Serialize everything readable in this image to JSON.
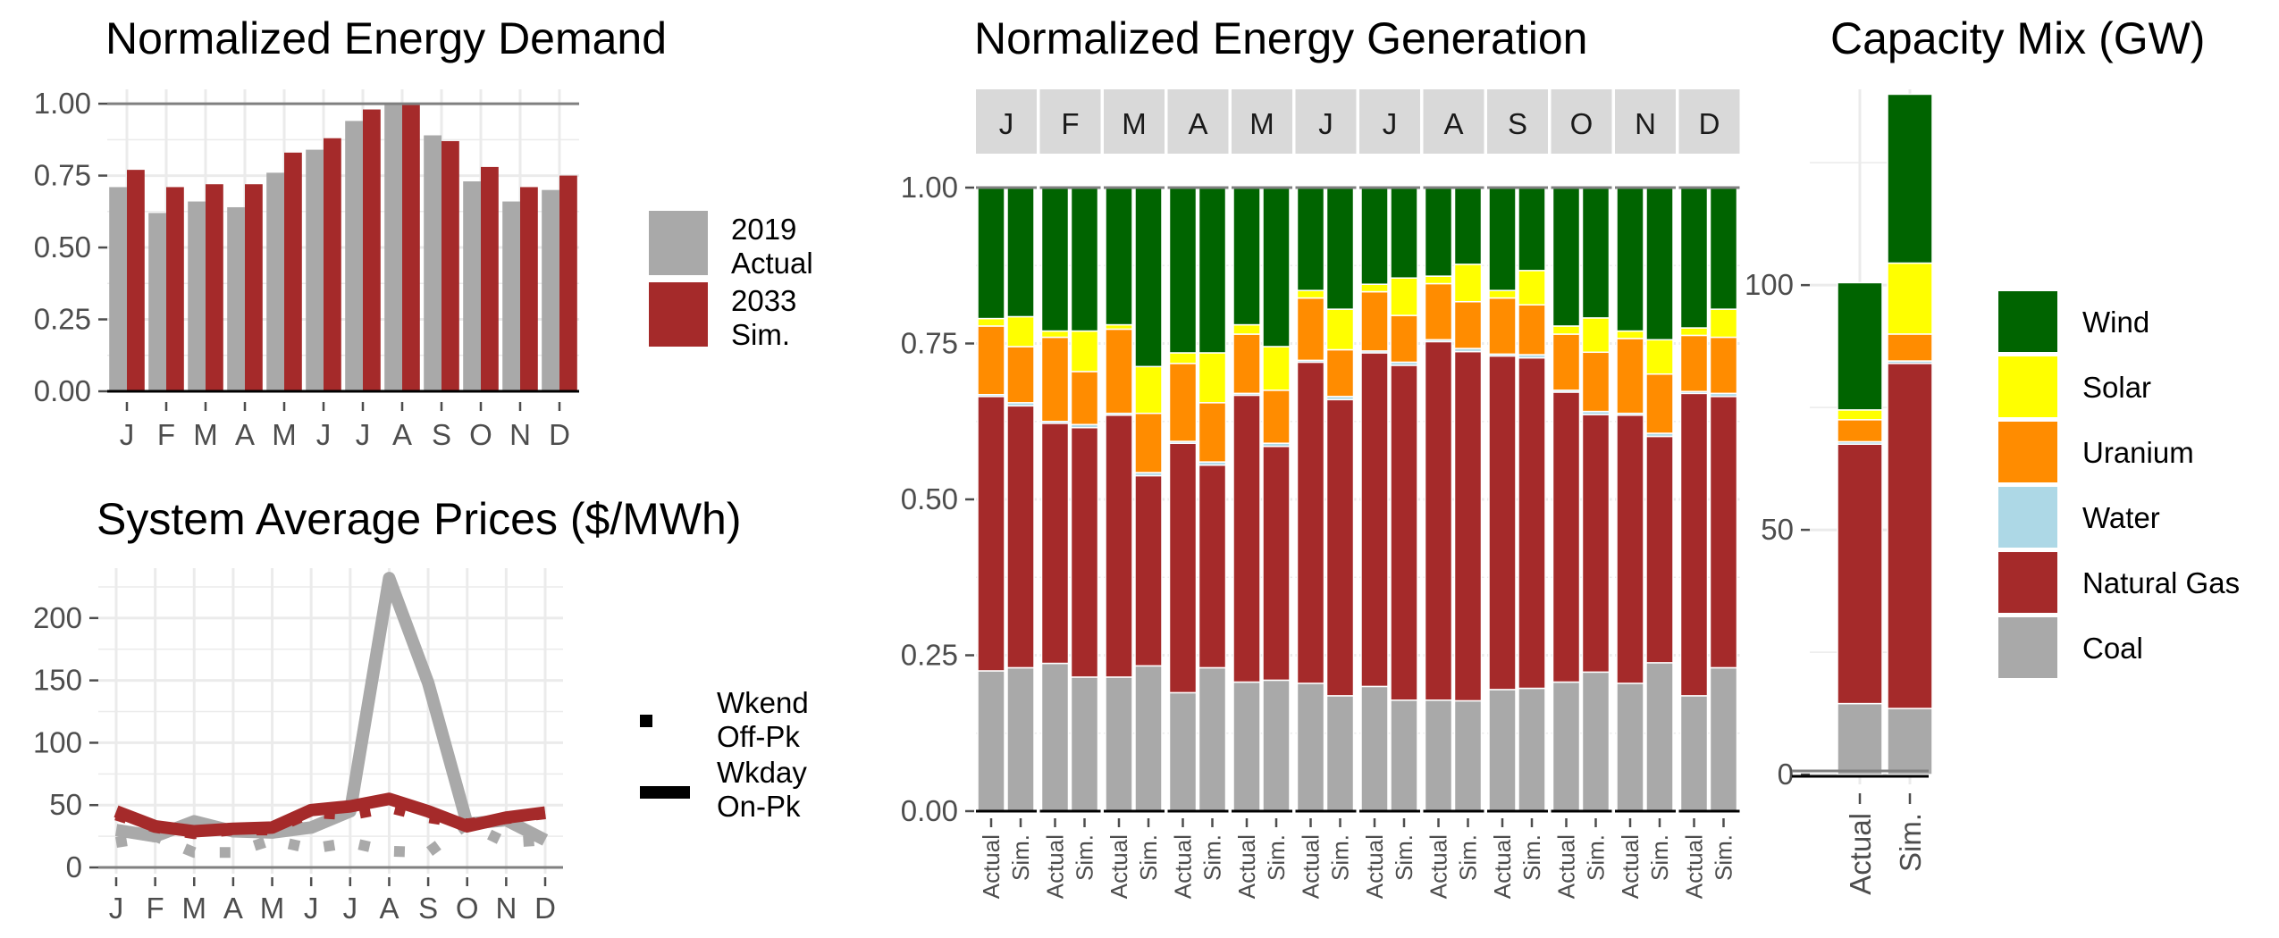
{
  "chart_data": [
    {
      "id": "demand",
      "type": "bar",
      "title": "Normalized Energy Demand",
      "categories": [
        "J",
        "F",
        "M",
        "A",
        "M",
        "J",
        "J",
        "A",
        "S",
        "O",
        "N",
        "D"
      ],
      "ylim": [
        0,
        1.05
      ],
      "yticks": [
        "0.00",
        "0.25",
        "0.50",
        "0.75",
        "1.00"
      ],
      "grid": true,
      "legend_position": "right",
      "series": [
        {
          "name": "2019 Actual",
          "color": "#a9a9a9",
          "values": [
            0.71,
            0.62,
            0.66,
            0.64,
            0.76,
            0.84,
            0.94,
            1.0,
            0.89,
            0.73,
            0.66,
            0.7
          ]
        },
        {
          "name": "2033 Sim.",
          "color": "#a52a2a",
          "values": [
            0.77,
            0.71,
            0.72,
            0.72,
            0.83,
            0.88,
            0.98,
            1.0,
            0.87,
            0.78,
            0.71,
            0.75
          ]
        }
      ],
      "legend": [
        {
          "lines": [
            "2019",
            "Actual"
          ],
          "color": "#a9a9a9"
        },
        {
          "lines": [
            "2033",
            "Sim."
          ],
          "color": "#a52a2a"
        }
      ]
    },
    {
      "id": "prices",
      "type": "line",
      "title": "System Average Prices ($/MWh)",
      "categories": [
        "J",
        "F",
        "M",
        "A",
        "M",
        "J",
        "J",
        "A",
        "S",
        "O",
        "N",
        "D"
      ],
      "ylim": [
        -5,
        240
      ],
      "yticks": [
        "0",
        "50",
        "100",
        "150",
        "200"
      ],
      "grid": true,
      "legend_position": "right",
      "series": [
        {
          "color": "#a9a9a9",
          "line": "solid",
          "values": [
            30,
            25,
            37,
            29,
            28,
            32,
            45,
            232,
            148,
            35,
            38,
            22
          ]
        },
        {
          "color": "#a52a2a",
          "line": "solid",
          "values": [
            45,
            33,
            29,
            31,
            32,
            46,
            49,
            55,
            45,
            33,
            40,
            44
          ]
        },
        {
          "color": "#a9a9a9",
          "line": "dotted",
          "values": [
            20,
            25,
            12,
            12,
            22,
            15,
            20,
            13,
            12,
            35,
            20,
            22
          ]
        },
        {
          "color": "#a52a2a",
          "line": "dotted",
          "values": [
            42,
            32,
            27,
            30,
            30,
            44,
            42,
            48,
            40,
            35,
            39,
            43
          ]
        }
      ],
      "legend": [
        {
          "lines": [
            "Wkend",
            "Off-Pk"
          ],
          "style": "dotted"
        },
        {
          "lines": [
            "Wkday",
            "On-Pk"
          ],
          "style": "solid"
        }
      ]
    },
    {
      "id": "generation",
      "type": "bar",
      "title": "Normalized Energy Generation",
      "stacked": true,
      "facets": [
        "J",
        "F",
        "M",
        "A",
        "M",
        "J",
        "J",
        "A",
        "S",
        "O",
        "N",
        "D"
      ],
      "x": [
        "Actual",
        "Sim."
      ],
      "ylim": [
        0,
        1.0
      ],
      "yticks": [
        "0.00",
        "0.25",
        "0.50",
        "0.75",
        "1.00"
      ],
      "grid": true,
      "stack_order": [
        "Coal",
        "Natural Gas",
        "Water",
        "Uranium",
        "Solar",
        "Wind"
      ],
      "values": {
        "Actual": [
          [
            0.225,
            0.44,
            0.003,
            0.11,
            0.012,
            0.21
          ],
          [
            0.237,
            0.385,
            0.003,
            0.135,
            0.01,
            0.23
          ],
          [
            0.215,
            0.42,
            0.003,
            0.135,
            0.007,
            0.22
          ],
          [
            0.19,
            0.4,
            0.003,
            0.125,
            0.017,
            0.265
          ],
          [
            0.207,
            0.46,
            0.003,
            0.095,
            0.015,
            0.22
          ],
          [
            0.205,
            0.515,
            0.003,
            0.1,
            0.012,
            0.165
          ],
          [
            0.2,
            0.535,
            0.003,
            0.095,
            0.012,
            0.155
          ],
          [
            0.178,
            0.575,
            0.003,
            0.09,
            0.012,
            0.142
          ],
          [
            0.195,
            0.535,
            0.003,
            0.09,
            0.012,
            0.165
          ],
          [
            0.207,
            0.465,
            0.003,
            0.09,
            0.013,
            0.222
          ],
          [
            0.205,
            0.43,
            0.003,
            0.12,
            0.012,
            0.23
          ],
          [
            0.185,
            0.485,
            0.003,
            0.09,
            0.012,
            0.225
          ]
        ],
        "Sim.": [
          [
            0.23,
            0.42,
            0.005,
            0.09,
            0.048,
            0.207
          ],
          [
            0.215,
            0.4,
            0.005,
            0.085,
            0.065,
            0.23
          ],
          [
            0.233,
            0.305,
            0.005,
            0.095,
            0.075,
            0.287
          ],
          [
            0.23,
            0.325,
            0.005,
            0.095,
            0.08,
            0.265
          ],
          [
            0.21,
            0.375,
            0.005,
            0.085,
            0.07,
            0.255
          ],
          [
            0.185,
            0.475,
            0.005,
            0.075,
            0.065,
            0.195
          ],
          [
            0.178,
            0.537,
            0.005,
            0.075,
            0.06,
            0.145
          ],
          [
            0.177,
            0.56,
            0.005,
            0.075,
            0.06,
            0.123
          ],
          [
            0.197,
            0.53,
            0.005,
            0.08,
            0.055,
            0.133
          ],
          [
            0.223,
            0.413,
            0.005,
            0.095,
            0.055,
            0.209
          ],
          [
            0.238,
            0.363,
            0.005,
            0.095,
            0.055,
            0.244
          ],
          [
            0.23,
            0.435,
            0.005,
            0.09,
            0.045,
            0.195
          ]
        ]
      }
    },
    {
      "id": "capacity",
      "type": "bar",
      "title": "Capacity Mix (GW)",
      "stacked": true,
      "x": [
        "Actual",
        "Sim."
      ],
      "ylim": [
        0,
        140
      ],
      "yticks": [
        "0",
        "50",
        "100"
      ],
      "grid": true,
      "stack_order": [
        "Coal",
        "Natural Gas",
        "Water",
        "Uranium",
        "Solar",
        "Wind"
      ],
      "values": {
        "Actual": [
          14.5,
          53,
          0.5,
          4.5,
          2,
          26
        ],
        "Sim.": [
          13.5,
          70.5,
          0.5,
          5.5,
          14.5,
          34.5
        ]
      }
    }
  ],
  "fuel_legend": [
    {
      "name": "Wind",
      "color": "#006400"
    },
    {
      "name": "Solar",
      "color": "#ffff00"
    },
    {
      "name": "Uranium",
      "color": "#ff8c00"
    },
    {
      "name": "Water",
      "color": "#add8e6"
    },
    {
      "name": "Natural Gas",
      "color": "#a52a2a"
    },
    {
      "name": "Coal",
      "color": "#a9a9a9"
    }
  ],
  "colors": {
    "grid": "#ebebeb",
    "axis": "#4d4d4d",
    "strip": "#d9d9d9"
  }
}
